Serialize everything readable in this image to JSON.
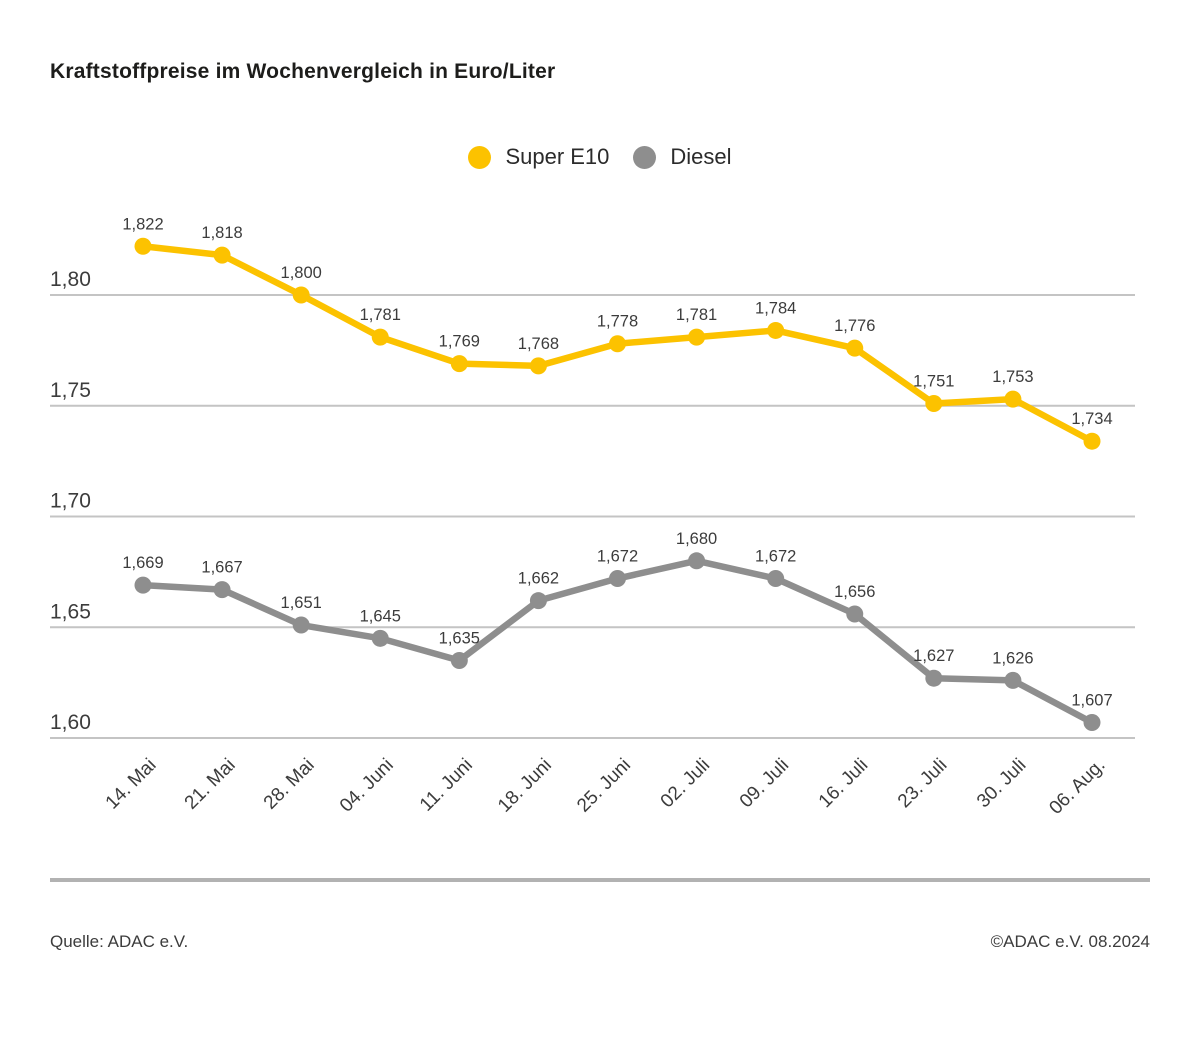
{
  "title": "Kraftstoffpreise im Wochenvergleich in Euro/Liter",
  "legend": [
    {
      "label": "Super E10",
      "color": "#fcc200"
    },
    {
      "label": "Diesel",
      "color": "#8e8e8e"
    }
  ],
  "footer": {
    "source": "Quelle: ADAC e.V.",
    "copyright": "©ADAC e.V. 08.2024"
  },
  "chart_data": {
    "type": "line",
    "title": "Kraftstoffpreise im Wochenvergleich in Euro/Liter",
    "categories": [
      "14. Mai",
      "21. Mai",
      "28. Mai",
      "04. Juni",
      "11. Juni",
      "18. Juni",
      "25. Juni",
      "02. Juli",
      "09. Juli",
      "16. Juli",
      "23. Juli",
      "30. Juli",
      "06. Aug."
    ],
    "series": [
      {
        "name": "Super E10",
        "color": "#fcc200",
        "values": [
          1.822,
          1.818,
          1.8,
          1.781,
          1.769,
          1.768,
          1.778,
          1.781,
          1.784,
          1.776,
          1.751,
          1.753,
          1.734
        ],
        "value_labels": [
          "1,822",
          "1,818",
          "1,800",
          "1,781",
          "1,769",
          "1,768",
          "1,778",
          "1,781",
          "1,784",
          "1,776",
          "1,751",
          "1,753",
          "1,734"
        ]
      },
      {
        "name": "Diesel",
        "color": "#8e8e8e",
        "values": [
          1.669,
          1.667,
          1.651,
          1.645,
          1.635,
          1.662,
          1.672,
          1.68,
          1.672,
          1.656,
          1.627,
          1.626,
          1.607
        ],
        "value_labels": [
          "1,669",
          "1,667",
          "1,651",
          "1,645",
          "1,635",
          "1,662",
          "1,672",
          "1,680",
          "1,672",
          "1,656",
          "1,627",
          "1,626",
          "1,607"
        ]
      }
    ],
    "yticks": [
      1.8,
      1.75,
      1.7,
      1.65,
      1.6
    ],
    "ytick_labels": [
      "1,80",
      "1,75",
      "1,70",
      "1,65",
      "1,60"
    ],
    "ylim": [
      1.575,
      1.83
    ],
    "grid": true,
    "legend_position": "top",
    "grid_color": "#c4c4c4",
    "label_color": "#3c3c3c"
  }
}
